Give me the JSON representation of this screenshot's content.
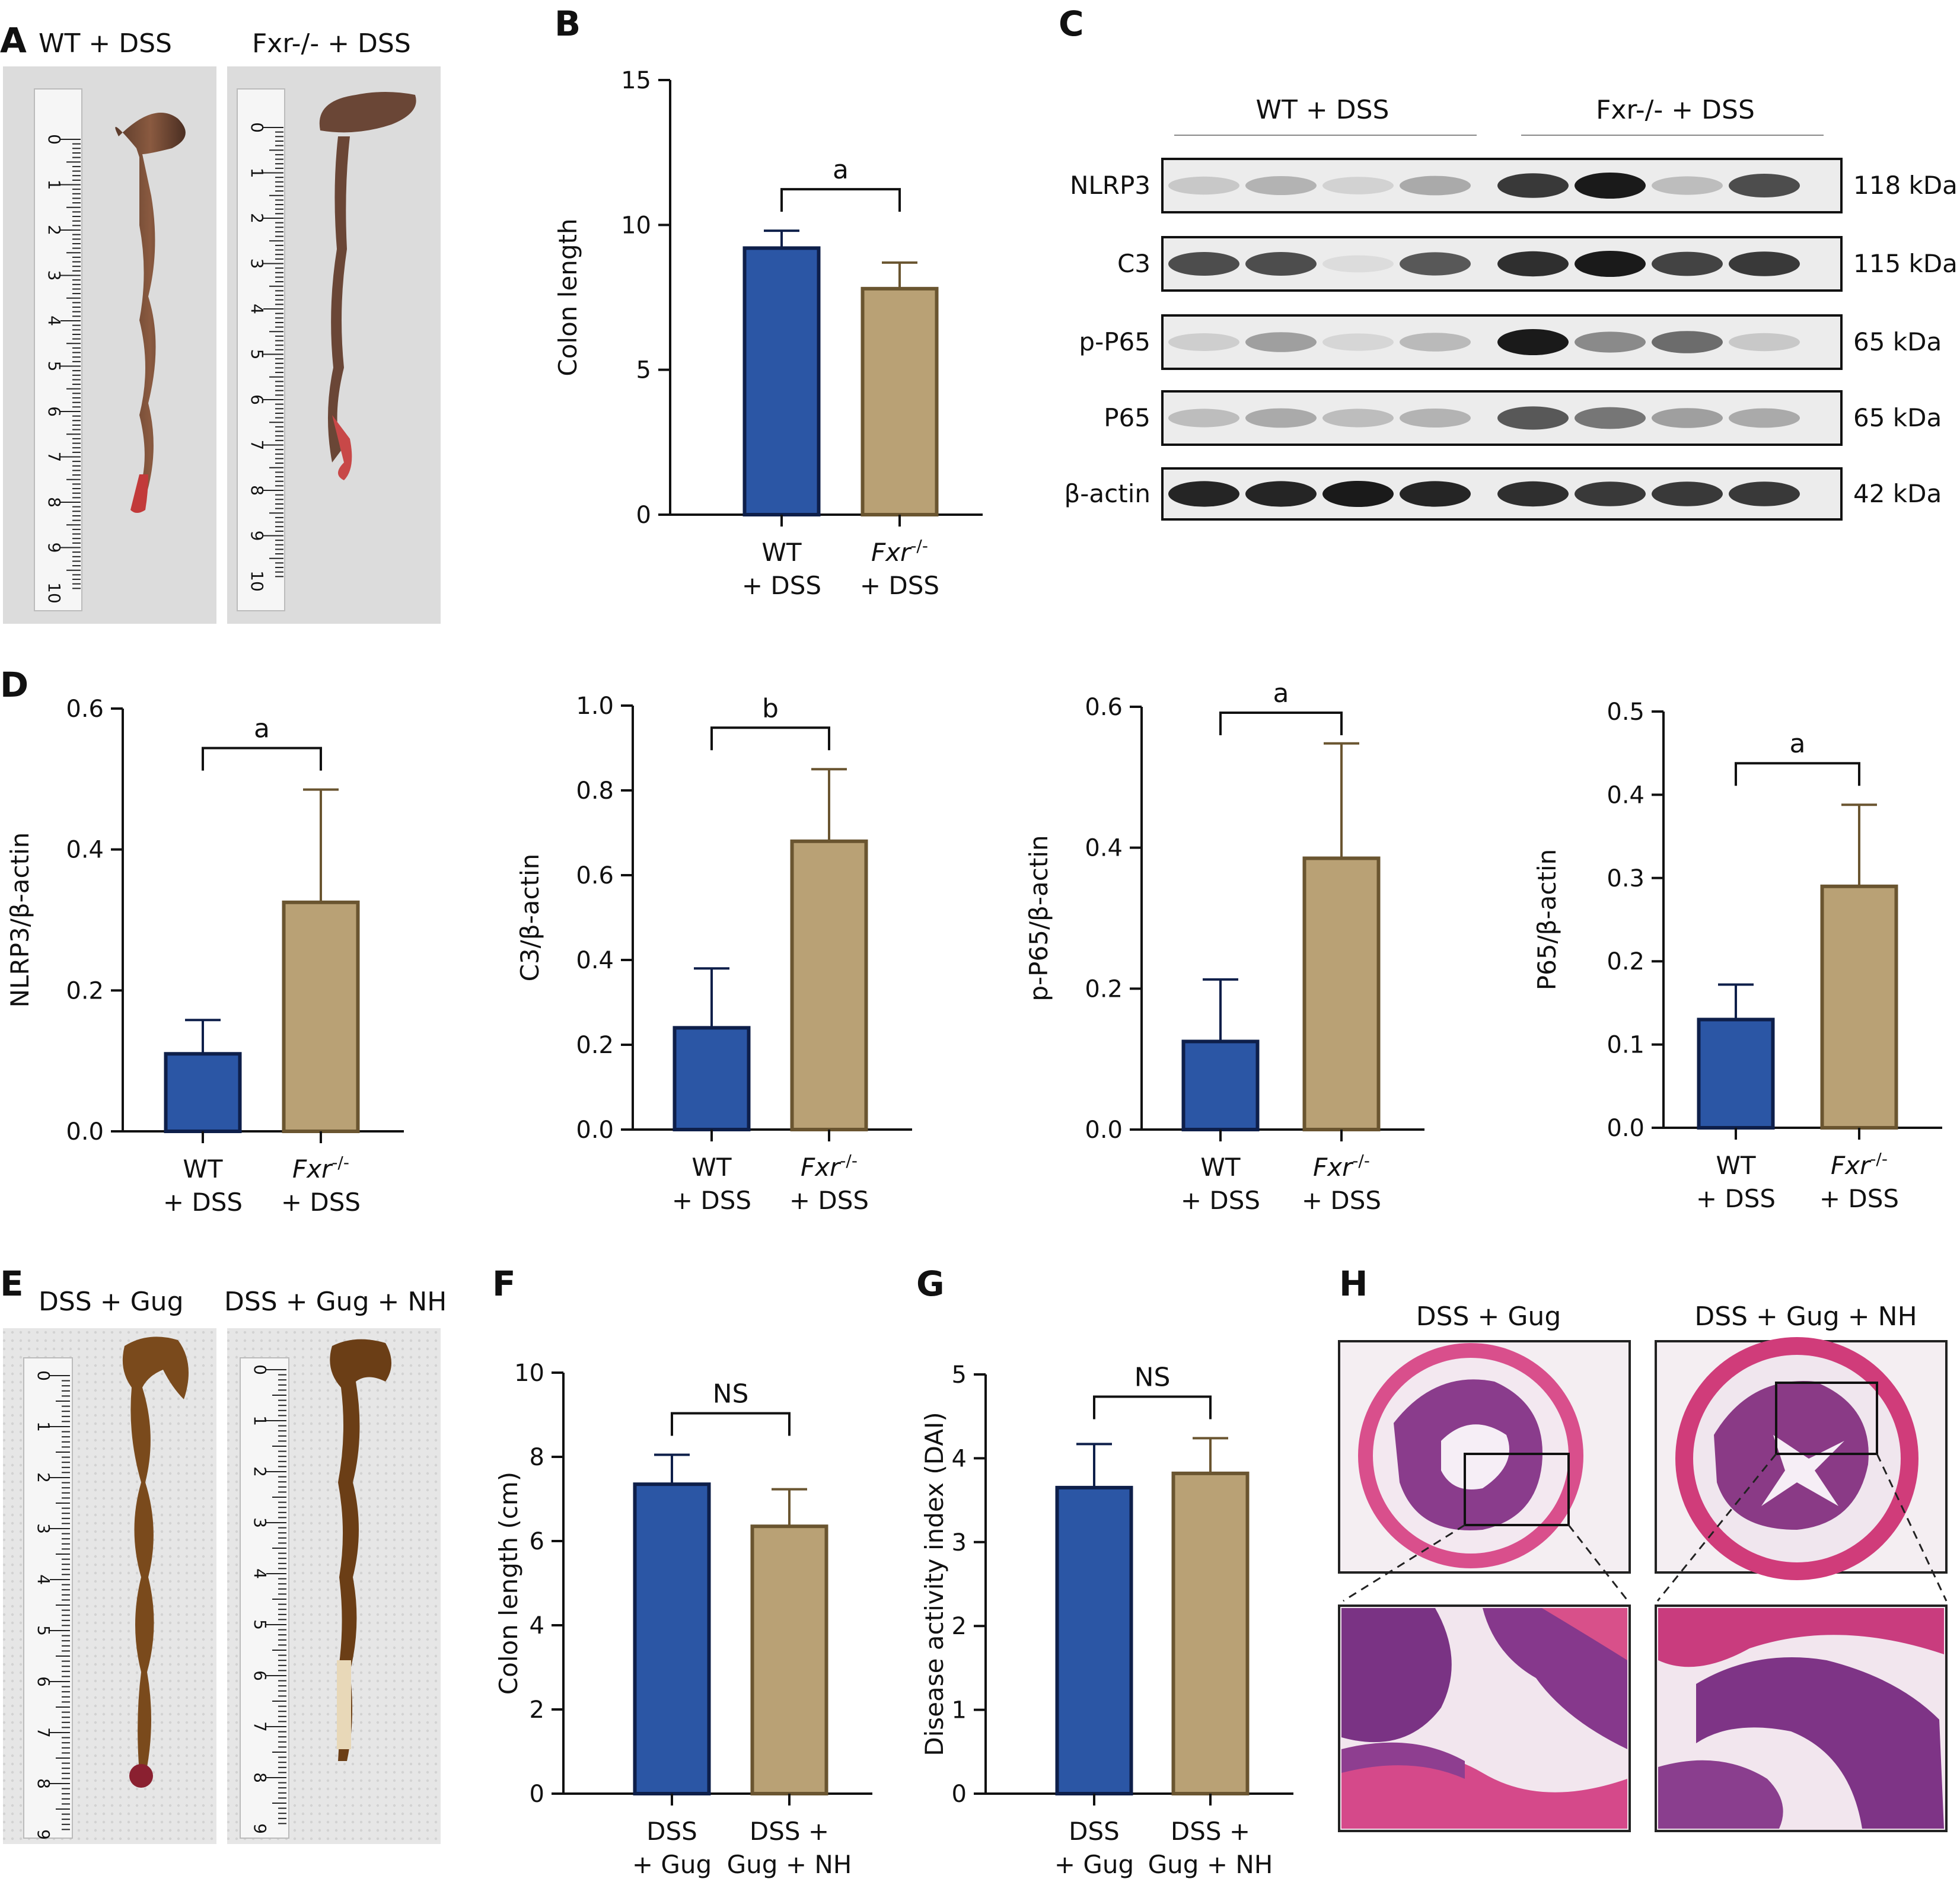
{
  "panels": {
    "A": {
      "label": "A",
      "conditions": [
        "WT + DSS",
        "Fxr-/- + DSS"
      ],
      "ruler_ticks": [
        "0",
        "1",
        "2",
        "3",
        "4",
        "5",
        "6",
        "7",
        "8",
        "9",
        "10"
      ]
    },
    "B": {
      "label": "B"
    },
    "C": {
      "label": "C",
      "groups": [
        "WT + DSS",
        "Fxr-/- + DSS"
      ],
      "rows": [
        {
          "protein": "NLRP3",
          "size": "118 kDa"
        },
        {
          "protein": "C3",
          "size": "115 kDa"
        },
        {
          "protein": "p-P65",
          "size": "65 kDa"
        },
        {
          "protein": "P65",
          "size": "65 kDa"
        },
        {
          "protein": "β-actin",
          "size": "42 kDa"
        }
      ]
    },
    "D": {
      "label": "D"
    },
    "E": {
      "label": "E",
      "conditions": [
        "DSS + Gug",
        "DSS + Gug + NH"
      ],
      "ruler_ticks": [
        "0",
        "1",
        "2",
        "3",
        "4",
        "5",
        "6",
        "7",
        "8",
        "9"
      ]
    },
    "F": {
      "label": "F"
    },
    "G": {
      "label": "G"
    },
    "H": {
      "label": "H",
      "conditions": [
        "DSS + Gug",
        "DSS + Gug + NH"
      ]
    }
  },
  "colors": {
    "blue": "#2B56A5",
    "blue_edge": "#0e1f4a",
    "tan": "#B9A175",
    "tan_edge": "#6a5530"
  },
  "chart_data": [
    {
      "id": "B",
      "type": "bar",
      "categories": [
        "WT + DSS",
        "Fxr-/- + DSS"
      ],
      "values": [
        9.2,
        7.8
      ],
      "errors": [
        0.6,
        0.9
      ],
      "ylabel": "Colon length",
      "ylim": [
        0,
        15
      ],
      "yticks": [
        0,
        5,
        10,
        15
      ],
      "significance": "a"
    },
    {
      "id": "D1",
      "type": "bar",
      "categories": [
        "WT + DSS",
        "Fxr-/- + DSS"
      ],
      "values": [
        0.11,
        0.325
      ],
      "errors": [
        0.048,
        0.16
      ],
      "ylabel": "NLRP3/β-actin",
      "ylim": [
        0,
        0.6
      ],
      "yticks": [
        0.0,
        0.2,
        0.4,
        0.6
      ],
      "significance": "a"
    },
    {
      "id": "D2",
      "type": "bar",
      "categories": [
        "WT + DSS",
        "Fxr-/- + DSS"
      ],
      "values": [
        0.24,
        0.68
      ],
      "errors": [
        0.14,
        0.17
      ],
      "ylabel": "C3/β-actin",
      "ylim": [
        0,
        1.0
      ],
      "yticks": [
        0.0,
        0.2,
        0.4,
        0.6,
        0.8,
        1.0
      ],
      "significance": "b"
    },
    {
      "id": "D3",
      "type": "bar",
      "categories": [
        "WT + DSS",
        "Fxr-/- + DSS"
      ],
      "values": [
        0.125,
        0.385
      ],
      "errors": [
        0.088,
        0.163
      ],
      "ylabel": "p-P65/β-actin",
      "ylim": [
        0,
        0.6
      ],
      "yticks": [
        0.0,
        0.2,
        0.4,
        0.6
      ],
      "significance": "a"
    },
    {
      "id": "D4",
      "type": "bar",
      "categories": [
        "WT + DSS",
        "Fxr-/- + DSS"
      ],
      "values": [
        0.13,
        0.29
      ],
      "errors": [
        0.042,
        0.098
      ],
      "ylabel": "P65/β-actin",
      "ylim": [
        0,
        0.5
      ],
      "yticks": [
        0.0,
        0.1,
        0.2,
        0.3,
        0.4,
        0.5
      ],
      "significance": "a"
    },
    {
      "id": "F",
      "type": "bar",
      "categories": [
        "DSS + Gug",
        "DSS + Gug + NH"
      ],
      "values": [
        7.35,
        6.35
      ],
      "errors": [
        0.7,
        0.88
      ],
      "ylabel": "Colon length (cm)",
      "ylim": [
        0,
        10
      ],
      "yticks": [
        0,
        2,
        4,
        6,
        8,
        10
      ],
      "significance": "NS"
    },
    {
      "id": "G",
      "type": "bar",
      "categories": [
        "DSS + Gug",
        "DSS + Gug + NH"
      ],
      "values": [
        3.65,
        3.82
      ],
      "errors": [
        0.52,
        0.42
      ],
      "ylabel": "Disease activity index (DAI)",
      "ylim": [
        0,
        5
      ],
      "yticks": [
        0,
        1,
        2,
        3,
        4,
        5
      ],
      "significance": "NS"
    }
  ]
}
